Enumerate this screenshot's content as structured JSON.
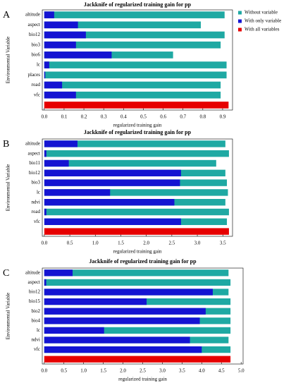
{
  "chart_data": [
    {
      "type": "bar",
      "orientation": "horizontal",
      "panel_label": "A",
      "title": "Jackknife of regularized training gain for pp",
      "xlabel": "regularized training gain",
      "ylabel": "Environmental Variable",
      "categories": [
        "altitude",
        "aspect",
        "bio12",
        "bio3",
        "bio6",
        "lc",
        "places",
        "road",
        "vfc",
        null
      ],
      "series": [
        {
          "name": "Without variable",
          "color": "#1fa9a3",
          "values": [
            0.91,
            0.79,
            0.91,
            0.89,
            0.65,
            0.92,
            0.92,
            0.89,
            0.89,
            null
          ]
        },
        {
          "name": "With only variable",
          "color": "#1414d2",
          "values": [
            0.05,
            0.17,
            0.21,
            0.16,
            0.34,
            0.025,
            0.005,
            0.09,
            0.16,
            null
          ]
        },
        {
          "name": "With all variables",
          "color": "#e60000",
          "values": [
            null,
            null,
            null,
            null,
            null,
            null,
            null,
            null,
            null,
            0.93
          ]
        }
      ],
      "xlim": [
        -0.01,
        0.95
      ],
      "xticks": [
        {
          "value": 0,
          "label": "0.0"
        },
        0.1,
        0.2,
        0.3,
        0.4,
        0.5,
        0.6,
        0.7,
        0.8,
        0.9
      ],
      "legend": "right"
    },
    {
      "type": "bar",
      "orientation": "horizontal",
      "panel_label": "B",
      "title": "Jackknife of regularized training gain for pp",
      "xlabel": "regularized training gain",
      "ylabel": "Environmental Variable",
      "categories": [
        "altitude",
        "aspect",
        "bio11",
        "bio12",
        "bio3",
        "lc",
        "ndvi",
        "road",
        "vfc",
        null
      ],
      "series": [
        {
          "color": "#1fa9a3",
          "values": [
            3.55,
            3.62,
            3.37,
            3.55,
            3.58,
            3.6,
            3.55,
            3.62,
            3.58,
            null
          ]
        },
        {
          "color": "#1414d2",
          "values": [
            0.65,
            0.04,
            0.48,
            2.68,
            2.66,
            1.29,
            2.55,
            0.04,
            2.68,
            null
          ]
        },
        {
          "color": "#e60000",
          "values": [
            null,
            null,
            null,
            null,
            null,
            null,
            null,
            null,
            null,
            3.62
          ]
        }
      ],
      "xlim": [
        -0.04,
        3.69
      ],
      "xticks": [
        {
          "value": 0,
          "label": "0.0"
        },
        0.5,
        {
          "value": 1,
          "label": "1.0"
        },
        1.5,
        {
          "value": 2,
          "label": "2.0"
        },
        2.5,
        {
          "value": 3,
          "label": "3.0"
        },
        3.5
      ]
    },
    {
      "type": "bar",
      "orientation": "horizontal",
      "panel_label": "C",
      "title": "Jackknife of regularized training gain for pp",
      "xlabel": "regularized training gain",
      "ylabel": "Environmental Variable",
      "categories": [
        "altitude",
        "aspect",
        "bio12",
        "bio15",
        "bio2",
        "bio4",
        "lc",
        "ndvi",
        "vfc",
        null
      ],
      "series": [
        {
          "color": "#1fa9a3",
          "values": [
            4.68,
            4.73,
            4.68,
            4.73,
            4.73,
            4.73,
            4.73,
            4.68,
            4.73,
            null
          ]
        },
        {
          "color": "#1414d2",
          "values": [
            0.72,
            0.05,
            4.28,
            2.6,
            4.1,
            3.95,
            1.52,
            3.7,
            4.0,
            null
          ]
        },
        {
          "color": "#e60000",
          "values": [
            null,
            null,
            null,
            null,
            null,
            null,
            null,
            null,
            null,
            4.73
          ]
        }
      ],
      "xlim": [
        -0.05,
        5.05
      ],
      "xticks": [
        {
          "value": 0,
          "label": "0.0"
        },
        0.5,
        {
          "value": 1,
          "label": "1.0"
        },
        1.5,
        {
          "value": 2,
          "label": "2.0"
        },
        2.5,
        {
          "value": 3,
          "label": "3.0"
        },
        3.5,
        {
          "value": 4,
          "label": "4.0"
        },
        4.5,
        {
          "value": 5,
          "label": "5.0"
        }
      ]
    }
  ]
}
